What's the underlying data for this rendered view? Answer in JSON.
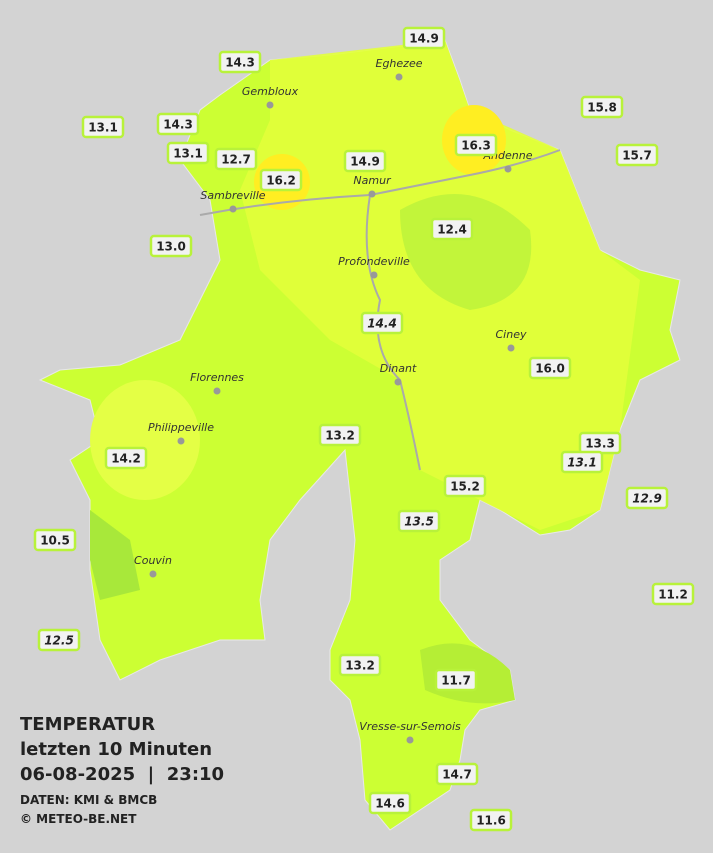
{
  "legend": {
    "title": "TEMPERATUR",
    "period": "letzten 10 Minuten",
    "datetime": "06-08-2025  |  23:10",
    "source": "DATEN: KMI & BMCB",
    "credit": "© METEO-BE.NET"
  },
  "cities": [
    "Eghezee",
    "Gembloux",
    "Andenne",
    "Namur",
    "Sambreville",
    "Profondeville",
    "Ciney",
    "Dinant",
    "Florennes",
    "Philippeville",
    "Couvin",
    "Vresse-sur-Semois"
  ],
  "stations": [
    {
      "label": "14.9",
      "italic": false
    },
    {
      "label": "14.3",
      "italic": false
    },
    {
      "label": "13.1",
      "italic": false
    },
    {
      "label": "14.3",
      "italic": false
    },
    {
      "label": "13.1",
      "italic": false
    },
    {
      "label": "12.7",
      "italic": false
    },
    {
      "label": "16.2",
      "italic": false
    },
    {
      "label": "14.9",
      "italic": false
    },
    {
      "label": "16.3",
      "italic": false
    },
    {
      "label": "15.8",
      "italic": false
    },
    {
      "label": "15.7",
      "italic": false
    },
    {
      "label": "13.0",
      "italic": false
    },
    {
      "label": "12.4",
      "italic": false
    },
    {
      "label": "14.4",
      "italic": true
    },
    {
      "label": "16.0",
      "italic": false
    },
    {
      "label": "13.2",
      "italic": false
    },
    {
      "label": "13.3",
      "italic": false
    },
    {
      "label": "13.1",
      "italic": true
    },
    {
      "label": "14.2",
      "italic": false
    },
    {
      "label": "15.2",
      "italic": false
    },
    {
      "label": "12.9",
      "italic": true
    },
    {
      "label": "13.5",
      "italic": true
    },
    {
      "label": "10.5",
      "italic": false
    },
    {
      "label": "11.2",
      "italic": false
    },
    {
      "label": "12.5",
      "italic": true
    },
    {
      "label": "13.2",
      "italic": false
    },
    {
      "label": "11.7",
      "italic": false
    },
    {
      "label": "14.7",
      "italic": false
    },
    {
      "label": "14.6",
      "italic": false
    },
    {
      "label": "11.6",
      "italic": false
    }
  ]
}
